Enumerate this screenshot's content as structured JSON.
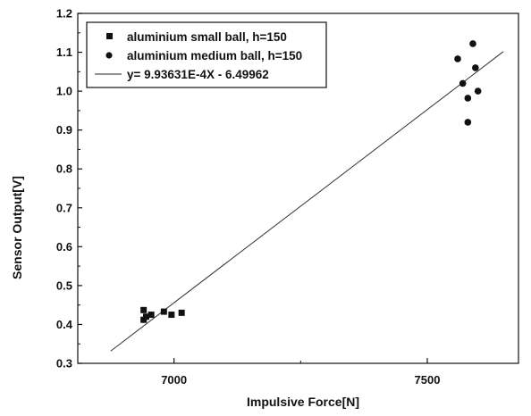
{
  "chart_data": {
    "type": "scatter",
    "xlabel": "Impulsive Force[N]",
    "ylabel": "Sensor Output[V]",
    "xlim": [
      6810,
      7680
    ],
    "ylim": [
      0.3,
      1.2
    ],
    "x_ticks": [
      7000,
      7500
    ],
    "x_tick_labels": [
      "7000",
      "7500"
    ],
    "y_ticks": [
      0.3,
      0.4,
      0.5,
      0.6,
      0.7,
      0.8,
      0.9,
      1.0,
      1.1,
      1.2
    ],
    "y_tick_labels": [
      "0.3",
      "0.4",
      "0.5",
      "0.6",
      "0.7",
      "0.8",
      "0.9",
      "1.0",
      "1.1",
      "1.2"
    ],
    "legend_position": "top-left",
    "series": [
      {
        "name": "aluminium small ball, h=150",
        "marker": "square",
        "points": [
          {
            "x": 6940,
            "y": 0.437
          },
          {
            "x": 6940,
            "y": 0.412
          },
          {
            "x": 6945,
            "y": 0.42
          },
          {
            "x": 6955,
            "y": 0.425
          },
          {
            "x": 6980,
            "y": 0.433
          },
          {
            "x": 6995,
            "y": 0.425
          },
          {
            "x": 7015,
            "y": 0.43
          }
        ]
      },
      {
        "name": "aluminium medium ball, h=150",
        "marker": "circle",
        "points": [
          {
            "x": 7560,
            "y": 1.083
          },
          {
            "x": 7590,
            "y": 1.122
          },
          {
            "x": 7595,
            "y": 1.06
          },
          {
            "x": 7570,
            "y": 1.02
          },
          {
            "x": 7580,
            "y": 0.982
          },
          {
            "x": 7600,
            "y": 1.0
          },
          {
            "x": 7580,
            "y": 0.92
          }
        ]
      },
      {
        "name": "y= 9.93631E-4X - 6.49962",
        "type": "line",
        "slope": 0.000993631,
        "intercept": -6.49962,
        "x_range": [
          6875,
          7650
        ]
      }
    ]
  }
}
